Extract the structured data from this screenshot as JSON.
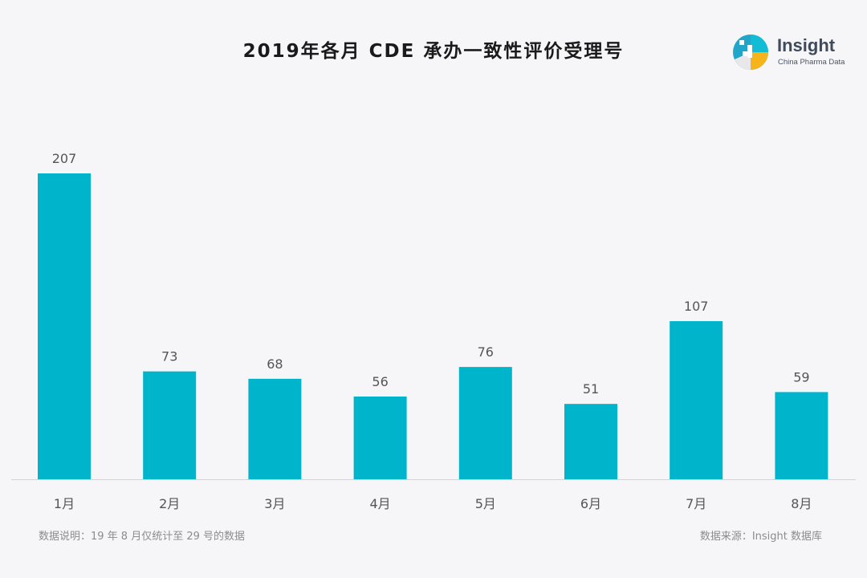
{
  "title": "2019年各月 CDE 承办一致性评价受理号",
  "logo": {
    "name": "Insight",
    "subtitle": "China Pharma Data",
    "icon": "insight-logo-icon"
  },
  "chart_data": {
    "type": "bar",
    "categories": [
      "1月",
      "2月",
      "3月",
      "4月",
      "5月",
      "6月",
      "7月",
      "8月"
    ],
    "values": [
      207,
      73,
      68,
      56,
      76,
      51,
      107,
      59
    ],
    "title": "2019年各月 CDE 承办一致性评价受理号",
    "xlabel": "",
    "ylabel": "",
    "ylim": [
      0,
      207
    ],
    "grid": false,
    "legend": "none",
    "bar_color": "#00b4cc"
  },
  "footer": {
    "note": "数据说明：19 年 8 月仅统计至 29 号的数据",
    "source": "数据来源：Insight 数据库"
  }
}
